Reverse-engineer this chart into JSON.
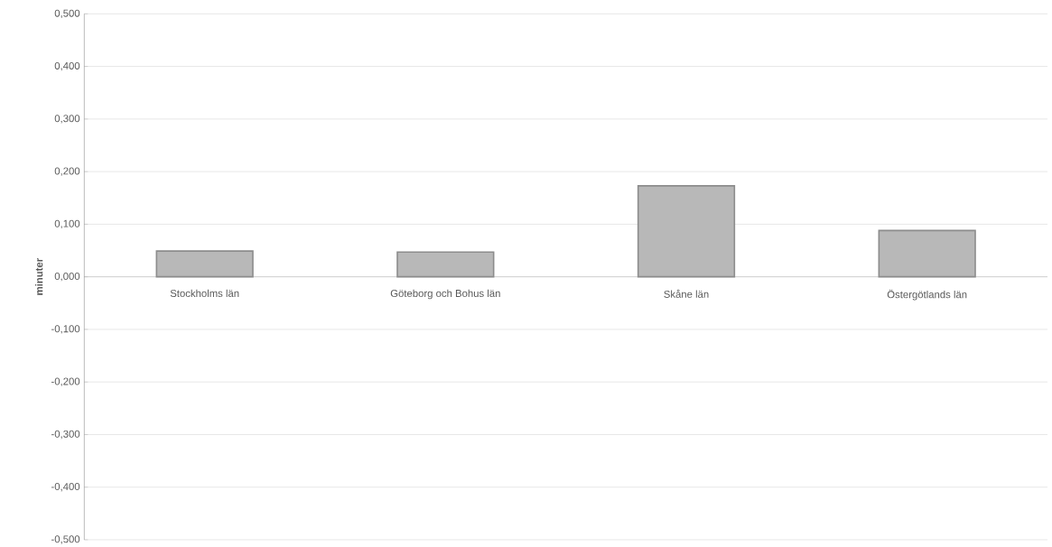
{
  "chart_data": {
    "type": "bar",
    "ylabel": "minuter",
    "categories": [
      "Stockholms län",
      "Göteborg och Bohus län",
      "Skåne län",
      "Östergötlands län"
    ],
    "values": [
      0.049,
      0.047,
      0.173,
      0.088
    ],
    "color": "#b8b8b8",
    "ylim": [
      -0.5,
      0.5
    ],
    "yticks": [
      {
        "value": -0.5,
        "label": "-0,500"
      },
      {
        "value": -0.4,
        "label": "-0,400"
      },
      {
        "value": -0.3,
        "label": "-0,300"
      },
      {
        "value": -0.2,
        "label": "-0,200"
      },
      {
        "value": -0.1,
        "label": "-0,100"
      },
      {
        "value": 0,
        "label": "0,000"
      },
      {
        "value": 0.1,
        "label": "0,100"
      },
      {
        "value": 0.2,
        "label": "0,200"
      },
      {
        "value": 0.3,
        "label": "0,300"
      },
      {
        "value": 0.4,
        "label": "0,400"
      },
      {
        "value": 0.5,
        "label": "0,500"
      }
    ],
    "grid": "y"
  }
}
